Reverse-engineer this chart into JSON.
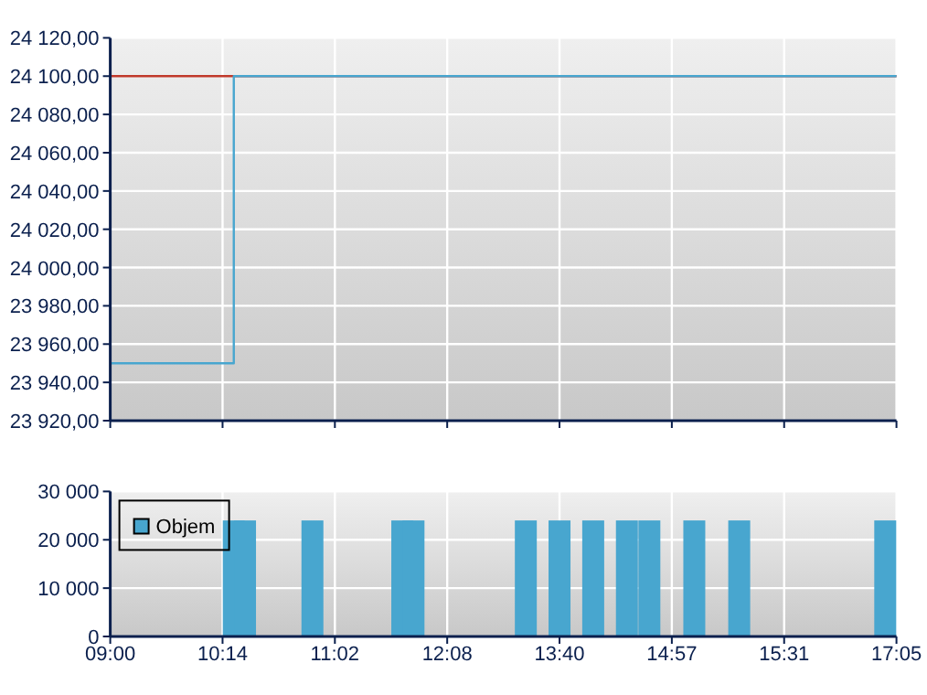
{
  "chart_data": [
    {
      "type": "step",
      "categories": [
        null,
        null,
        null,
        null,
        null,
        null,
        null,
        null,
        null,
        null,
        null,
        null,
        null,
        null,
        null,
        null,
        null,
        null,
        null,
        null,
        null,
        null,
        null,
        null,
        null,
        null,
        null,
        null,
        null,
        null,
        null,
        null,
        null,
        null,
        null,
        null,
        null,
        null,
        null,
        null,
        null,
        null,
        null,
        null,
        null,
        null,
        null,
        null,
        null,
        null,
        null,
        null,
        null,
        null,
        null,
        null,
        null,
        null,
        null,
        null,
        null,
        null,
        null,
        null,
        null,
        null,
        null,
        null,
        null,
        null,
        null
      ],
      "ylim": [
        23920,
        24120
      ],
      "yticks": [
        {
          "value": 23920,
          "label": "23 920,00"
        },
        {
          "value": 23940,
          "label": "23 940,00"
        },
        {
          "value": 23960,
          "label": "23 960,00"
        },
        {
          "value": 23980,
          "label": "23 980,00"
        },
        {
          "value": 24000,
          "label": "24 000,00"
        },
        {
          "value": 24020,
          "label": "24 020,00"
        },
        {
          "value": 24040,
          "label": "24 040,00"
        },
        {
          "value": 24060,
          "label": "24 060,00"
        },
        {
          "value": 24080,
          "label": "24 080,00"
        },
        {
          "value": 24100,
          "label": "24 100,00"
        },
        {
          "value": 24120,
          "label": "24 120,00"
        }
      ],
      "grid": true,
      "tick_labels": "y",
      "ref_lines": [
        {
          "axis": "y",
          "value": 24100,
          "color": "#c0392b"
        }
      ],
      "series": [
        {
          "color": "#48a6cf",
          "values": [
            23950,
            23950,
            23950,
            23950,
            23950,
            23950,
            23950,
            23950,
            23950,
            23950,
            23950,
            24100,
            24100,
            24100,
            24100,
            24100,
            24100,
            24100,
            24100,
            24100,
            24100,
            24100,
            24100,
            24100,
            24100,
            24100,
            24100,
            24100,
            24100,
            24100,
            24100,
            24100,
            24100,
            24100,
            24100,
            24100,
            24100,
            24100,
            24100,
            24100,
            24100,
            24100,
            24100,
            24100,
            24100,
            24100,
            24100,
            24100,
            24100,
            24100,
            24100,
            24100,
            24100,
            24100,
            24100,
            24100,
            24100,
            24100,
            24100,
            24100,
            24100,
            24100,
            24100,
            24100,
            24100,
            24100,
            24100,
            24100,
            24100,
            24100,
            24100
          ]
        }
      ]
    },
    {
      "type": "bar",
      "categories": [
        "09:00",
        null,
        null,
        null,
        null,
        null,
        null,
        null,
        null,
        null,
        "10:14",
        null,
        null,
        null,
        null,
        null,
        null,
        null,
        null,
        null,
        "11:02",
        null,
        null,
        null,
        null,
        null,
        null,
        null,
        null,
        null,
        "12:08",
        null,
        null,
        null,
        null,
        null,
        null,
        null,
        null,
        null,
        "13:40",
        null,
        null,
        null,
        null,
        null,
        null,
        null,
        null,
        null,
        "14:57",
        null,
        null,
        null,
        null,
        null,
        null,
        null,
        null,
        null,
        "15:31",
        null,
        null,
        null,
        null,
        null,
        null,
        null,
        null,
        null,
        "17:05"
      ],
      "ylim": [
        0,
        30000
      ],
      "yticks": [
        {
          "value": 0,
          "label": "0"
        },
        {
          "value": 10000,
          "label": "10 000"
        },
        {
          "value": 20000,
          "label": "20 000"
        },
        {
          "value": 30000,
          "label": "30 000"
        }
      ],
      "grid": true,
      "legend": "top left",
      "series": [
        {
          "name": "Objem",
          "color": "#48a6cf",
          "values": [
            null,
            null,
            null,
            null,
            null,
            null,
            null,
            null,
            null,
            null,
            null,
            24000,
            24000,
            null,
            null,
            null,
            null,
            null,
            24000,
            null,
            null,
            null,
            null,
            null,
            null,
            null,
            24000,
            24000,
            null,
            null,
            null,
            null,
            null,
            null,
            null,
            null,
            null,
            24000,
            null,
            null,
            24000,
            null,
            null,
            24000,
            null,
            null,
            24000,
            null,
            24000,
            null,
            null,
            null,
            24000,
            null,
            null,
            null,
            24000,
            null,
            null,
            null,
            null,
            null,
            null,
            null,
            null,
            null,
            null,
            null,
            null,
            24000,
            null
          ]
        }
      ]
    }
  ]
}
